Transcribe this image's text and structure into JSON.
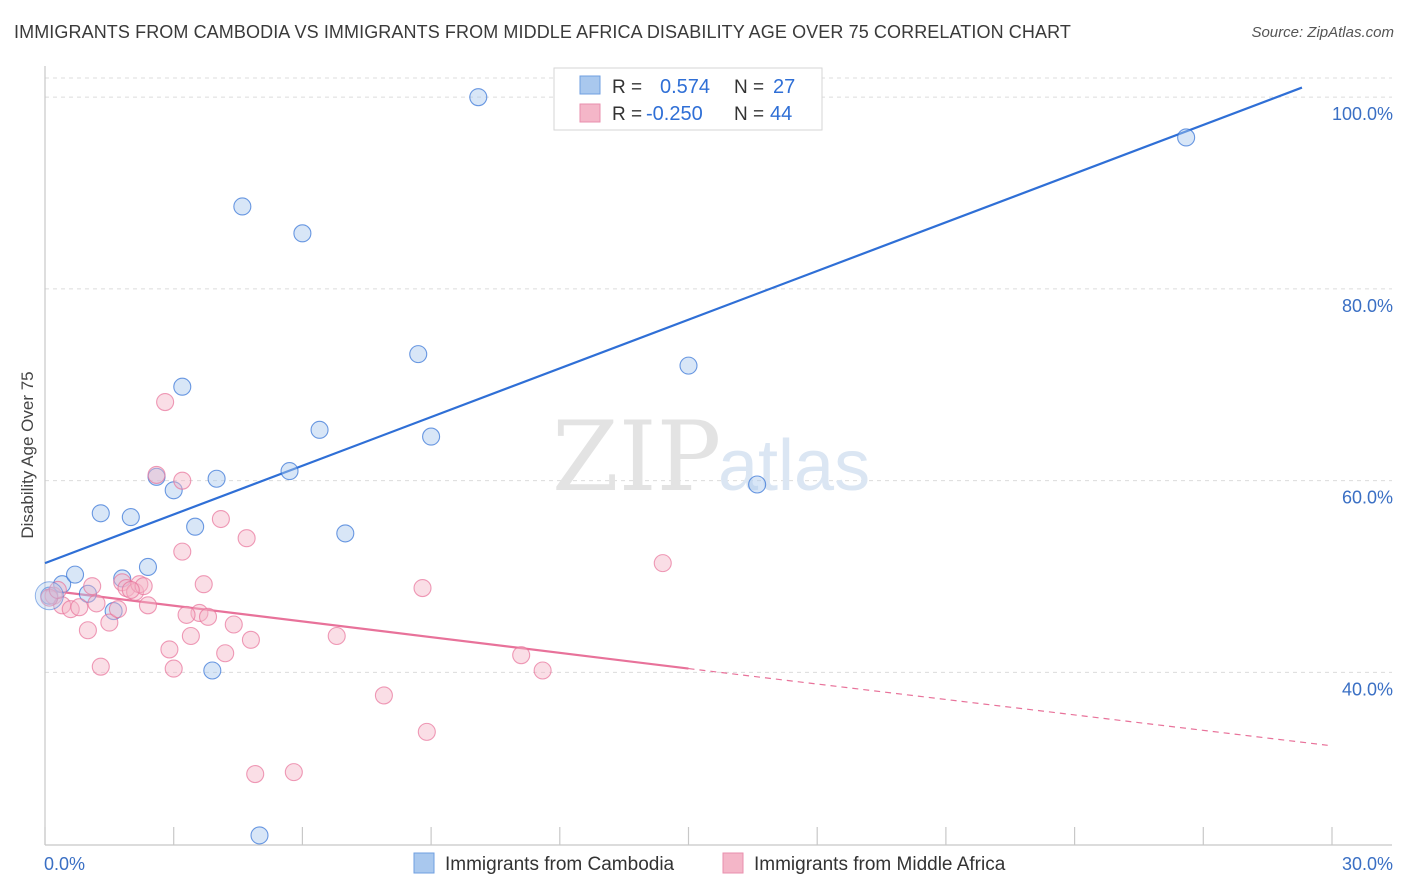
{
  "title": "IMMIGRANTS FROM CAMBODIA VS IMMIGRANTS FROM MIDDLE AFRICA DISABILITY AGE OVER 75 CORRELATION CHART",
  "source": "Source: ZipAtlas.com",
  "watermark": {
    "zip": "ZIP",
    "atlas": "atlas"
  },
  "legend": {
    "r_label": "R =",
    "n_label": "N =",
    "rows": [
      {
        "r": "0.574",
        "n": "27",
        "color": "#a9c8ee"
      },
      {
        "r": "-0.250",
        "n": "44",
        "color": "#f4b6c8"
      }
    ]
  },
  "chart_data": {
    "type": "scatter",
    "title": "IMMIGRANTS FROM CAMBODIA VS IMMIGRANTS FROM MIDDLE AFRICA DISABILITY AGE OVER 75 CORRELATION CHART",
    "xlabel": "",
    "ylabel": "Disability Age Over 75",
    "xlim": [
      0,
      30
    ],
    "ylim": [
      22,
      102
    ],
    "x_ticks": [
      "0.0%",
      "30.0%"
    ],
    "y_ticks": [
      {
        "value": 40,
        "label": "40.0%"
      },
      {
        "value": 60,
        "label": "60.0%"
      },
      {
        "value": 80,
        "label": "80.0%"
      },
      {
        "value": 100,
        "label": "100.0%"
      }
    ],
    "grid": true,
    "legend_position": "top-center",
    "series": [
      {
        "name": "Immigrants from Cambodia",
        "color": "#2f6fd6",
        "fill": "#a9c8ee",
        "points": [
          [
            0.1,
            48.0
          ],
          [
            0.4,
            49.2
          ],
          [
            0.7,
            50.2
          ],
          [
            1.0,
            48.2
          ],
          [
            1.3,
            56.6
          ],
          [
            1.6,
            46.4
          ],
          [
            1.8,
            49.8
          ],
          [
            2.0,
            56.2
          ],
          [
            2.4,
            51.0
          ],
          [
            2.6,
            60.4
          ],
          [
            3.0,
            59.0
          ],
          [
            3.2,
            69.8
          ],
          [
            3.5,
            55.2
          ],
          [
            3.9,
            40.2
          ],
          [
            4.0,
            60.2
          ],
          [
            4.6,
            88.6
          ],
          [
            5.0,
            23.0
          ],
          [
            5.7,
            61.0
          ],
          [
            6.0,
            85.8
          ],
          [
            6.4,
            65.3
          ],
          [
            7.0,
            54.5
          ],
          [
            8.7,
            73.2
          ],
          [
            9.0,
            64.6
          ],
          [
            10.1,
            100.0
          ],
          [
            15.0,
            72.0
          ],
          [
            16.6,
            59.6
          ],
          [
            26.6,
            95.8
          ]
        ],
        "trend": {
          "x1": 0,
          "y1": 51.4,
          "x2": 29.3,
          "y2": 101.0
        }
      },
      {
        "name": "Immigrants from Middle Africa",
        "color": "#e8729a",
        "fill": "#f4b6c8",
        "points": [
          [
            0.2,
            48.0
          ],
          [
            0.4,
            47.0
          ],
          [
            0.6,
            46.6
          ],
          [
            0.8,
            46.8
          ],
          [
            1.0,
            44.4
          ],
          [
            1.1,
            49.0
          ],
          [
            1.3,
            40.6
          ],
          [
            1.5,
            45.2
          ],
          [
            1.7,
            46.6
          ],
          [
            1.8,
            49.4
          ],
          [
            1.9,
            48.8
          ],
          [
            2.1,
            48.4
          ],
          [
            2.2,
            49.2
          ],
          [
            2.3,
            49.0
          ],
          [
            2.4,
            47.0
          ],
          [
            2.6,
            60.6
          ],
          [
            2.8,
            68.2
          ],
          [
            2.9,
            42.4
          ],
          [
            3.0,
            40.4
          ],
          [
            3.2,
            60.0
          ],
          [
            3.2,
            52.6
          ],
          [
            3.4,
            43.8
          ],
          [
            3.6,
            46.2
          ],
          [
            3.7,
            49.2
          ],
          [
            3.8,
            45.8
          ],
          [
            4.1,
            56.0
          ],
          [
            4.2,
            42.0
          ],
          [
            4.4,
            45.0
          ],
          [
            4.7,
            54.0
          ],
          [
            4.8,
            43.4
          ],
          [
            4.9,
            29.4
          ],
          [
            5.8,
            29.6
          ],
          [
            6.8,
            43.8
          ],
          [
            7.9,
            37.6
          ],
          [
            8.8,
            48.8
          ],
          [
            8.9,
            33.8
          ],
          [
            11.1,
            41.8
          ],
          [
            11.6,
            40.2
          ],
          [
            14.4,
            51.4
          ],
          [
            0.1,
            47.8
          ],
          [
            0.3,
            48.6
          ],
          [
            2.0,
            48.6
          ],
          [
            1.2,
            47.2
          ],
          [
            3.3,
            46.0
          ]
        ],
        "trend": {
          "x1": 0,
          "y1": 48.6,
          "x2": 15.0,
          "y2": 40.4
        },
        "trend_dashed": {
          "x1": 15.0,
          "y1": 40.4,
          "x2": 29.9,
          "y2": 32.4
        }
      }
    ]
  },
  "bottom_legend": [
    "Immigrants from Cambodia",
    "Immigrants from Middle Africa"
  ]
}
